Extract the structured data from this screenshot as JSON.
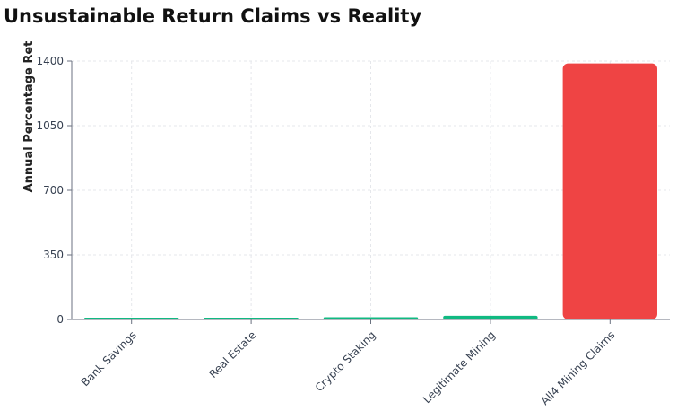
{
  "chart_data": {
    "type": "bar",
    "title": "Unsustainable Return Claims vs Reality",
    "xlabel": "",
    "ylabel": "Annual Percentage Ret",
    "categories": [
      "Bank Savings",
      "Real Estate",
      "Crypto Staking",
      "Legitimate Mining",
      "All4 Mining Claims"
    ],
    "values": [
      2,
      8,
      12,
      20,
      1387
    ],
    "colors": [
      "#10b981",
      "#10b981",
      "#10b981",
      "#10b981",
      "#ef4444"
    ],
    "ylim": [
      0,
      1400
    ],
    "yticks": [
      0,
      350,
      700,
      1050,
      1400
    ],
    "grid": true,
    "legend": "none"
  }
}
